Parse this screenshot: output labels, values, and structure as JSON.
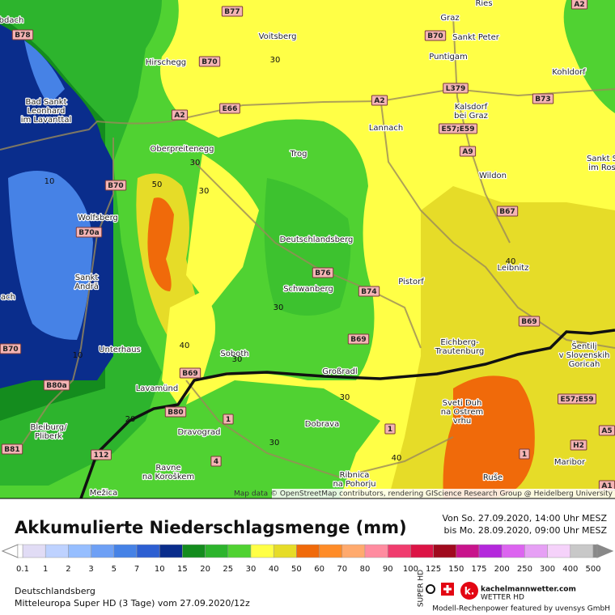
{
  "map": {
    "places": [
      {
        "lines": [
          "bdach"
        ]
      },
      {
        "lines": [
          "Voitsberg"
        ]
      },
      {
        "lines": [
          "Graz"
        ]
      },
      {
        "lines": [
          "Ries"
        ]
      },
      {
        "lines": [
          "Sankt Peter"
        ]
      },
      {
        "lines": [
          "Puntigam"
        ]
      },
      {
        "lines": [
          "Hirschegg"
        ]
      },
      {
        "lines": [
          "Kohldorf"
        ]
      },
      {
        "lines": [
          "Bad Sankt",
          "Leonhard",
          "im Lavanttal"
        ]
      },
      {
        "lines": [
          "Lannach"
        ]
      },
      {
        "lines": [
          "Kalsdorf",
          "bei Graz"
        ]
      },
      {
        "lines": [
          "Oberpreitenegg"
        ]
      },
      {
        "lines": [
          "Trog"
        ]
      },
      {
        "lines": [
          "Wildon"
        ]
      },
      {
        "lines": [
          "Sankt S",
          "im Ros"
        ]
      },
      {
        "lines": [
          "Wolfsberg"
        ]
      },
      {
        "lines": [
          "Deutschlandsberg"
        ]
      },
      {
        "lines": [
          "Leibnitz"
        ]
      },
      {
        "lines": [
          "Sankt",
          "Andrä"
        ]
      },
      {
        "lines": [
          "Schwanberg"
        ]
      },
      {
        "lines": [
          "Pistorf"
        ]
      },
      {
        "lines": [
          "ach"
        ]
      },
      {
        "lines": [
          "Eichberg-",
          "Trautenburg"
        ]
      },
      {
        "lines": [
          "Šentilj",
          "v Slovenskih",
          "Goricah"
        ]
      },
      {
        "lines": [
          "Unterhaus"
        ]
      },
      {
        "lines": [
          "Soboth"
        ]
      },
      {
        "lines": [
          "Großradl"
        ]
      },
      {
        "lines": [
          "Lavamünd"
        ]
      },
      {
        "lines": [
          "Sveti Duh",
          "na Ostrem",
          "vrhu"
        ]
      },
      {
        "lines": [
          "Bleiburg/",
          "Pliberk"
        ]
      },
      {
        "lines": [
          "Dravograd"
        ]
      },
      {
        "lines": [
          "Dobrava"
        ]
      },
      {
        "lines": [
          "Maribor"
        ]
      },
      {
        "lines": [
          "Ravne",
          "na Koroškem"
        ]
      },
      {
        "lines": [
          "Ribnica",
          "na Pohorju"
        ]
      },
      {
        "lines": [
          "Ruše"
        ]
      },
      {
        "lines": [
          "Mežica"
        ]
      }
    ],
    "roads": [
      "B78",
      "B77",
      "A2",
      "B70",
      "B70",
      "E66",
      "A2",
      "A2",
      "L379",
      "B73",
      "E57;E59",
      "A9",
      "B70",
      "B70a",
      "B67",
      "B76",
      "B74",
      "B69",
      "B69",
      "B70",
      "B69",
      "B80a",
      "B80",
      "1",
      "1",
      "E57;E59",
      "A5",
      "H2",
      "B81",
      "112",
      "4",
      "1",
      "A1"
    ],
    "contours": [
      "30",
      "30",
      "30",
      "50",
      "10",
      "40",
      "30",
      "40",
      "10",
      "30",
      "30",
      "20",
      "30",
      "40"
    ],
    "attribution": "Map data © OpenStreetMap contributors, rendering GIScience Research Group @ Heidelberg University"
  },
  "legend": {
    "title": "Akkumulierte Niederschlagsmenge (mm)",
    "period": [
      "Von So. 27.09.2020, 14:00 Uhr MESZ",
      "bis Mo. 28.09.2020, 09:00 Uhr MESZ"
    ],
    "scale": [
      "0.1",
      "1",
      "2",
      "3",
      "5",
      "7",
      "10",
      "15",
      "20",
      "25",
      "30",
      "40",
      "50",
      "60",
      "70",
      "80",
      "90",
      "100",
      "125",
      "150",
      "175",
      "200",
      "250",
      "300",
      "400",
      "500"
    ],
    "colors": [
      "#e1dcf5",
      "#bed2ff",
      "#96beff",
      "#6ea0f5",
      "#4682e6",
      "#2d5fd2",
      "#0a2d8c",
      "#148c1e",
      "#2db42d",
      "#50d232",
      "#ffff46",
      "#e6dc28",
      "#f06a0a",
      "#ff8c28",
      "#ffaa6e",
      "#ff8ca0",
      "#f03c6e",
      "#dc1446",
      "#a00a1e",
      "#c8148c",
      "#b428dc",
      "#dc64f0",
      "#e6a0f5",
      "#f5d2fa",
      "#c8c8c8"
    ]
  },
  "footer": {
    "location": "Deutschlandsberg",
    "model": "Mitteleuropa Super HD (3 Tage) vom 27.09.2020/12z",
    "badge": "SUPER HD",
    "site": "kachelmannwetter.com",
    "site_sub": "WETTER HD",
    "credit": "Modell-Rechenpower featured by uvensys GmbH"
  }
}
